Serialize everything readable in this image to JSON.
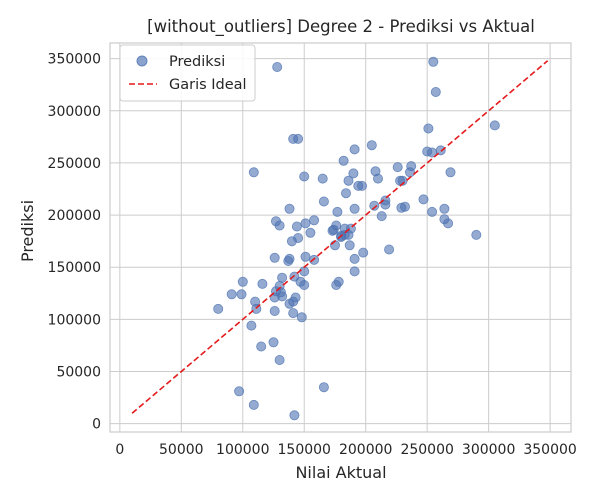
{
  "chart_data": {
    "type": "scatter",
    "title": "[without_outliers] Degree 2 - Prediksi vs Aktual",
    "xlabel": "Nilai Aktual",
    "ylabel": "Prediksi",
    "xlim": [
      -8000,
      367000
    ],
    "ylim": [
      -8000,
      365000
    ],
    "xticks": [
      0,
      50000,
      100000,
      150000,
      200000,
      250000,
      300000,
      350000
    ],
    "yticks": [
      0,
      50000,
      100000,
      150000,
      200000,
      250000,
      300000,
      350000
    ],
    "grid": true,
    "legend_position": "top-left",
    "colors": {
      "points": "#4c72b0",
      "ideal": "#e41a1c",
      "grid": "#cccccc",
      "axes": "#cccccc"
    },
    "series": [
      {
        "name": "Prediksi",
        "kind": "scatter",
        "points": [
          [
            128000,
            342000
          ],
          [
            255000,
            347000
          ],
          [
            257000,
            318000
          ],
          [
            305000,
            286000
          ],
          [
            141000,
            273000
          ],
          [
            145000,
            273000
          ],
          [
            251000,
            283000
          ],
          [
            205000,
            267000
          ],
          [
            191000,
            263000
          ],
          [
            250000,
            261000
          ],
          [
            254000,
            260000
          ],
          [
            261000,
            262000
          ],
          [
            182000,
            252000
          ],
          [
            237000,
            247000
          ],
          [
            226000,
            246000
          ],
          [
            208000,
            242000
          ],
          [
            269000,
            241000
          ],
          [
            236000,
            241000
          ],
          [
            190000,
            240000
          ],
          [
            109000,
            241000
          ],
          [
            150000,
            237000
          ],
          [
            165000,
            235000
          ],
          [
            186000,
            233000
          ],
          [
            210000,
            235000
          ],
          [
            228000,
            233000
          ],
          [
            230000,
            233000
          ],
          [
            197000,
            228000
          ],
          [
            194000,
            228000
          ],
          [
            184000,
            221000
          ],
          [
            166000,
            213000
          ],
          [
            247000,
            215000
          ],
          [
            216000,
            214000
          ],
          [
            229000,
            207000
          ],
          [
            232000,
            208000
          ],
          [
            264000,
            206000
          ],
          [
            207000,
            209000
          ],
          [
            191000,
            206000
          ],
          [
            216000,
            210000
          ],
          [
            138000,
            206000
          ],
          [
            177000,
            203000
          ],
          [
            254000,
            203000
          ],
          [
            213000,
            199000
          ],
          [
            264000,
            196000
          ],
          [
            267000,
            192000
          ],
          [
            158000,
            195000
          ],
          [
            127000,
            194000
          ],
          [
            151000,
            192000
          ],
          [
            130000,
            190000
          ],
          [
            144000,
            189000
          ],
          [
            176000,
            190000
          ],
          [
            174000,
            186000
          ],
          [
            183000,
            187000
          ],
          [
            188000,
            187000
          ],
          [
            173000,
            185000
          ],
          [
            155000,
            183000
          ],
          [
            183000,
            181000
          ],
          [
            180000,
            180000
          ],
          [
            186000,
            181000
          ],
          [
            180000,
            179000
          ],
          [
            145000,
            178000
          ],
          [
            140000,
            175000
          ],
          [
            187000,
            171000
          ],
          [
            175000,
            171000
          ],
          [
            198000,
            164000
          ],
          [
            219000,
            167000
          ],
          [
            290000,
            181000
          ],
          [
            151000,
            160000
          ],
          [
            126000,
            159000
          ],
          [
            138000,
            158000
          ],
          [
            137000,
            156000
          ],
          [
            158000,
            157000
          ],
          [
            191000,
            158000
          ],
          [
            150000,
            146000
          ],
          [
            132000,
            140000
          ],
          [
            191000,
            146000
          ],
          [
            142000,
            141000
          ],
          [
            100000,
            136000
          ],
          [
            116000,
            134000
          ],
          [
            147000,
            136000
          ],
          [
            178000,
            136000
          ],
          [
            176000,
            133000
          ],
          [
            150000,
            133000
          ],
          [
            130000,
            132000
          ],
          [
            127000,
            127000
          ],
          [
            131000,
            126000
          ],
          [
            132000,
            122000
          ],
          [
            126000,
            121000
          ],
          [
            143000,
            121000
          ],
          [
            99000,
            124000
          ],
          [
            91000,
            124000
          ],
          [
            110000,
            117000
          ],
          [
            141000,
            117000
          ],
          [
            138000,
            115000
          ],
          [
            111000,
            110000
          ],
          [
            80000,
            110000
          ],
          [
            126000,
            108000
          ],
          [
            141000,
            106000
          ],
          [
            148000,
            102000
          ],
          [
            107000,
            94000
          ],
          [
            125000,
            78000
          ],
          [
            115000,
            74000
          ],
          [
            130000,
            61000
          ],
          [
            166000,
            35000
          ],
          [
            97000,
            31000
          ],
          [
            109000,
            18000
          ],
          [
            142000,
            8000
          ]
        ]
      },
      {
        "name": "Garis Ideal",
        "kind": "line",
        "points": [
          [
            10000,
            10000
          ],
          [
            348000,
            348000
          ]
        ]
      }
    ]
  }
}
